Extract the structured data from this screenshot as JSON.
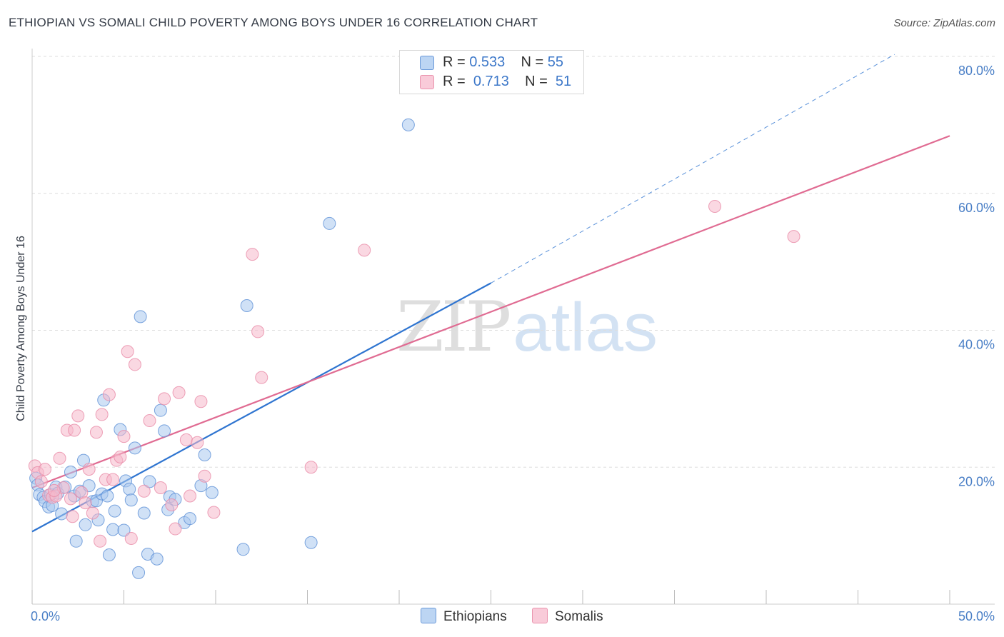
{
  "header": {
    "title": "ETHIOPIAN VS SOMALI CHILD POVERTY AMONG BOYS UNDER 16 CORRELATION CHART",
    "source": "Source: ZipAtlas.com"
  },
  "watermark": {
    "zip": "ZIP",
    "atlas": "atlas"
  },
  "legend_top": [
    {
      "r_label": "R = ",
      "r_value": "0.533",
      "n_label": "N = ",
      "n_value": "55"
    },
    {
      "r_label": "R = ",
      "r_value": "0.713",
      "n_label": "N = ",
      "n_value": "51"
    }
  ],
  "legend_bottom": {
    "ethiopians": "Ethiopians",
    "somalis": "Somalis"
  },
  "colors": {
    "ethiopians_fill": "#a9c8ef",
    "ethiopians_stroke": "#5b8fd6",
    "ethiopians_line": "#2e74d0",
    "somalis_fill": "#f6b8cb",
    "somalis_stroke": "#e98aa6",
    "somalis_line": "#e06b92",
    "tick_label": "#4a7fc6",
    "grid": "#dddddd"
  },
  "chart_data": {
    "type": "scatter",
    "title": "ETHIOPIAN VS SOMALI CHILD POVERTY AMONG BOYS UNDER 16 CORRELATION CHART",
    "xlabel": "",
    "ylabel": "Child Poverty Among Boys Under 16",
    "xlim": [
      0,
      50
    ],
    "ylim": [
      0,
      80
    ],
    "x_tick_labels": [
      "0.0%",
      "50.0%"
    ],
    "y_ticks": [
      {
        "value": 20,
        "label": "20.0%"
      },
      {
        "value": 40,
        "label": "40.0%"
      },
      {
        "value": 60,
        "label": "60.0%"
      },
      {
        "value": 80,
        "label": "80.0%"
      }
    ],
    "grid": true,
    "legend": "top-center",
    "series": [
      {
        "name": "Ethiopians",
        "r": 0.533,
        "n": 55,
        "trend": {
          "x": [
            0,
            25
          ],
          "y": [
            10.6,
            46.9
          ],
          "dashed_extension_to": [
            47.0,
            80.3
          ]
        },
        "points": [
          [
            0.2,
            18.4
          ],
          [
            0.3,
            17.4
          ],
          [
            0.4,
            16.0
          ],
          [
            0.6,
            15.6
          ],
          [
            0.7,
            15.0
          ],
          [
            0.9,
            14.2
          ],
          [
            1.0,
            16.0
          ],
          [
            1.1,
            14.4
          ],
          [
            1.3,
            17.1
          ],
          [
            1.4,
            16.2
          ],
          [
            1.6,
            13.2
          ],
          [
            1.8,
            17.1
          ],
          [
            2.1,
            19.3
          ],
          [
            2.3,
            15.8
          ],
          [
            2.4,
            9.2
          ],
          [
            2.6,
            16.5
          ],
          [
            2.8,
            21.0
          ],
          [
            2.9,
            11.6
          ],
          [
            3.1,
            17.3
          ],
          [
            3.3,
            15.0
          ],
          [
            3.5,
            15.1
          ],
          [
            3.6,
            12.3
          ],
          [
            3.8,
            16.1
          ],
          [
            3.9,
            29.8
          ],
          [
            4.1,
            15.8
          ],
          [
            4.2,
            7.2
          ],
          [
            4.4,
            10.9
          ],
          [
            4.5,
            13.6
          ],
          [
            4.8,
            25.5
          ],
          [
            5.0,
            10.8
          ],
          [
            5.1,
            18.0
          ],
          [
            5.3,
            16.8
          ],
          [
            5.4,
            15.2
          ],
          [
            5.6,
            22.8
          ],
          [
            5.8,
            4.6
          ],
          [
            5.9,
            42.0
          ],
          [
            6.1,
            13.3
          ],
          [
            6.3,
            7.3
          ],
          [
            6.4,
            17.9
          ],
          [
            6.8,
            6.6
          ],
          [
            7.0,
            28.3
          ],
          [
            7.2,
            25.3
          ],
          [
            7.4,
            13.8
          ],
          [
            7.5,
            15.7
          ],
          [
            7.8,
            15.3
          ],
          [
            8.3,
            11.9
          ],
          [
            8.6,
            12.5
          ],
          [
            9.2,
            17.3
          ],
          [
            9.4,
            21.8
          ],
          [
            9.8,
            16.3
          ],
          [
            11.5,
            8.0
          ],
          [
            11.7,
            43.6
          ],
          [
            16.2,
            55.6
          ],
          [
            15.2,
            9.0
          ],
          [
            20.5,
            70.0
          ]
        ]
      },
      {
        "name": "Somalis",
        "r": 0.713,
        "n": 51,
        "trend": {
          "x": [
            0,
            50
          ],
          "y": [
            17.0,
            68.4
          ]
        },
        "points": [
          [
            0.15,
            20.2
          ],
          [
            0.3,
            19.2
          ],
          [
            0.5,
            17.9
          ],
          [
            0.7,
            19.7
          ],
          [
            0.9,
            15.9
          ],
          [
            1.1,
            15.6
          ],
          [
            1.3,
            15.8
          ],
          [
            1.5,
            21.3
          ],
          [
            1.7,
            17.0
          ],
          [
            1.9,
            25.4
          ],
          [
            2.1,
            15.4
          ],
          [
            2.3,
            25.4
          ],
          [
            2.5,
            27.5
          ],
          [
            2.7,
            16.3
          ],
          [
            2.9,
            14.8
          ],
          [
            3.1,
            19.7
          ],
          [
            3.3,
            13.3
          ],
          [
            3.5,
            25.1
          ],
          [
            3.7,
            9.2
          ],
          [
            3.8,
            27.7
          ],
          [
            4.0,
            18.2
          ],
          [
            4.2,
            30.6
          ],
          [
            4.4,
            18.2
          ],
          [
            4.6,
            21.0
          ],
          [
            4.8,
            21.5
          ],
          [
            5.0,
            24.5
          ],
          [
            5.2,
            36.9
          ],
          [
            5.4,
            9.6
          ],
          [
            5.6,
            35.0
          ],
          [
            6.1,
            16.5
          ],
          [
            6.4,
            26.8
          ],
          [
            7.0,
            17.0
          ],
          [
            7.2,
            30.0
          ],
          [
            7.6,
            14.5
          ],
          [
            7.8,
            11.0
          ],
          [
            8.0,
            30.9
          ],
          [
            8.4,
            24.0
          ],
          [
            8.6,
            15.8
          ],
          [
            9.0,
            23.6
          ],
          [
            9.2,
            29.6
          ],
          [
            9.4,
            18.7
          ],
          [
            9.9,
            13.4
          ],
          [
            12.0,
            51.1
          ],
          [
            12.3,
            39.8
          ],
          [
            12.5,
            33.1
          ],
          [
            15.2,
            20.0
          ],
          [
            18.1,
            51.7
          ],
          [
            37.2,
            58.1
          ],
          [
            41.5,
            53.7
          ],
          [
            1.2,
            16.6
          ],
          [
            2.2,
            12.8
          ]
        ]
      }
    ]
  }
}
